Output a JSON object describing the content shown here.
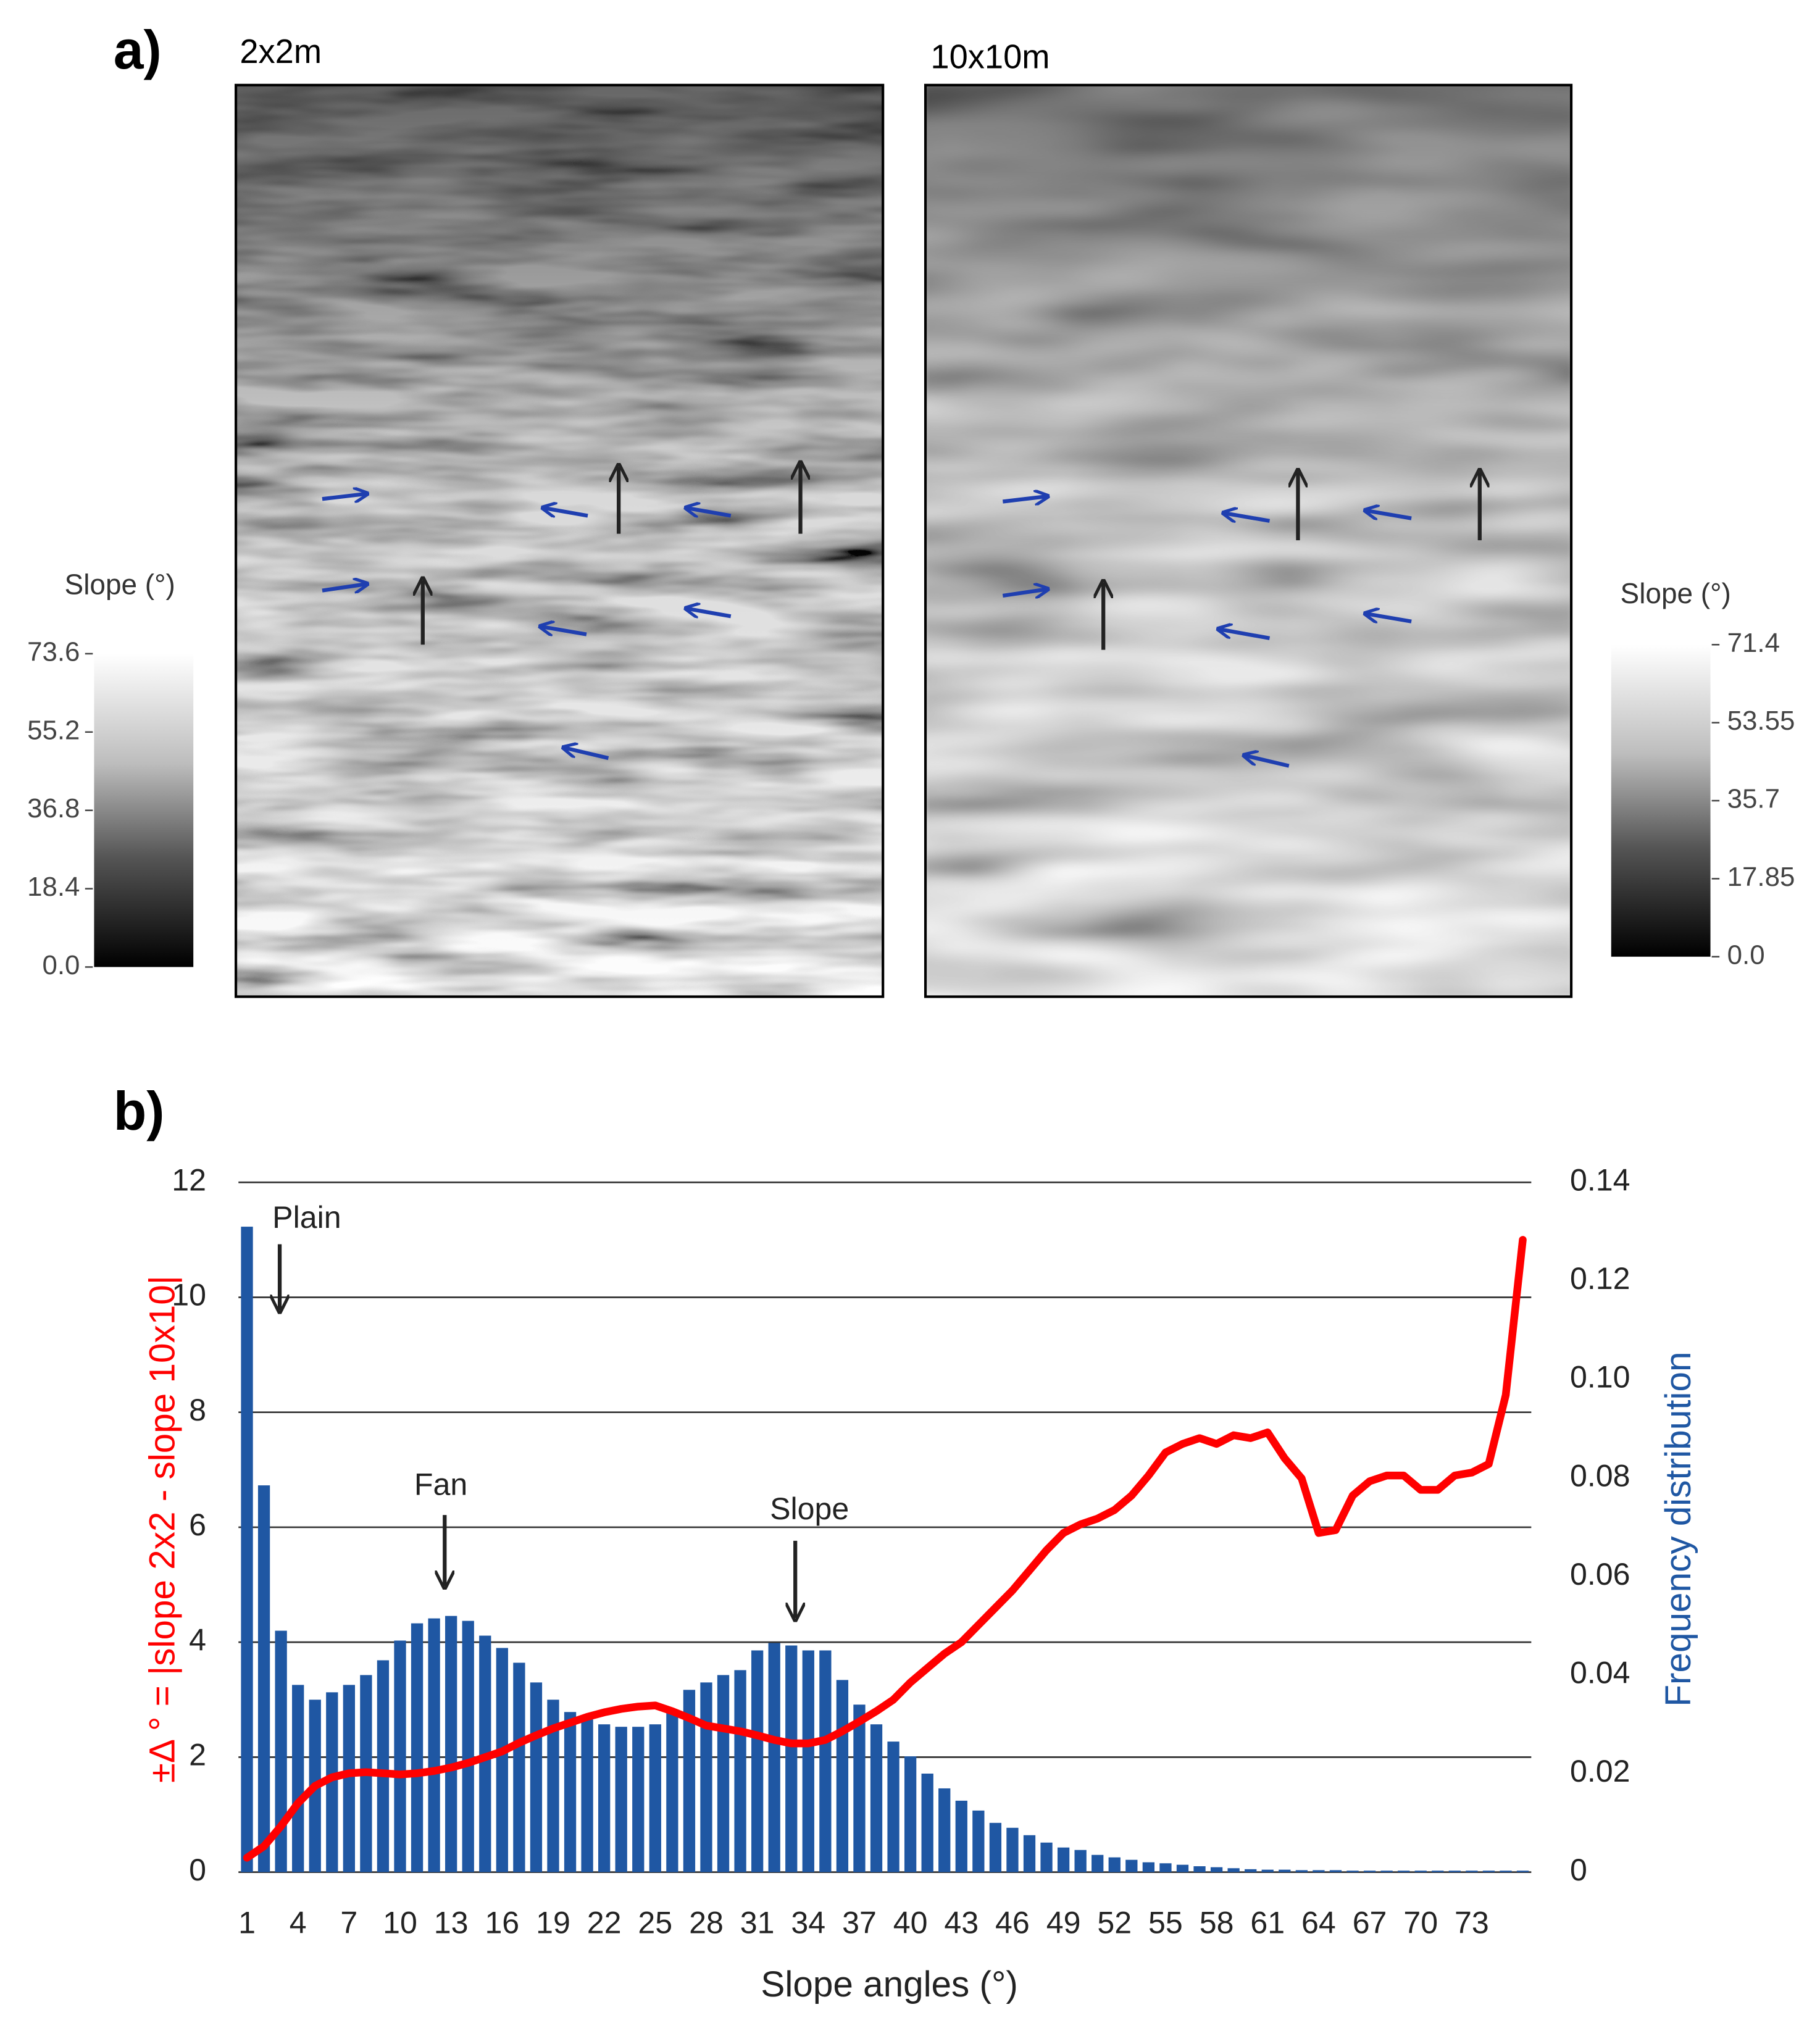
{
  "panel_a": {
    "label": "a)",
    "maps": [
      {
        "title": "2x2m"
      },
      {
        "title": "10x10m"
      }
    ],
    "colorbars": [
      {
        "title": "Slope (°)",
        "lim": [
          0,
          73.6
        ],
        "ticks": [
          {
            "value": 0,
            "label": "0.0"
          },
          18.4,
          36.8,
          55.2,
          73.6
        ]
      },
      {
        "title": "Slope (°)",
        "lim": [
          0,
          71.4
        ],
        "ticks": [
          {
            "value": 0,
            "label": "0.0"
          },
          17.85,
          35.7,
          53.55,
          71.4
        ]
      }
    ]
  },
  "panel_b": {
    "label": "b)"
  },
  "chart_data": {
    "type": "bar",
    "xlabel": "Slope angles (°)",
    "ylabel": "±Δ ° = |slope 2x2 - slope 10x10|",
    "y2label": "Frequency distribution",
    "annotations": [
      "Plain",
      "Fan",
      "Slope"
    ],
    "x": [
      1,
      2,
      3,
      4,
      5,
      6,
      7,
      8,
      9,
      10,
      11,
      12,
      13,
      14,
      15,
      16,
      17,
      18,
      19,
      20,
      21,
      22,
      23,
      24,
      25,
      26,
      27,
      28,
      29,
      30,
      31,
      32,
      33,
      34,
      35,
      36,
      37,
      38,
      39,
      40,
      41,
      42,
      43,
      44,
      45,
      46,
      47,
      48,
      49,
      50,
      51,
      52,
      53,
      54,
      55,
      56,
      57,
      58,
      59,
      60,
      61,
      62,
      63,
      64,
      65,
      66,
      67,
      68,
      69,
      70,
      71,
      72,
      73,
      74,
      75,
      76
    ],
    "xlim": [
      0.5,
      76.5
    ],
    "xticks": [
      1,
      4,
      7,
      10,
      13,
      16,
      19,
      22,
      25,
      28,
      31,
      34,
      37,
      40,
      43,
      46,
      49,
      52,
      55,
      58,
      61,
      64,
      67,
      70,
      73
    ],
    "ylim": [
      0,
      12
    ],
    "yticks": [
      0,
      2,
      4,
      6,
      8,
      10,
      12
    ],
    "y2lim": [
      0,
      0.14
    ],
    "y2ticks": [
      0,
      0.02,
      0.04,
      0.06,
      0.08,
      {
        "value": 0.1,
        "label": "0.10"
      },
      0.12,
      0.14
    ],
    "grid": true,
    "series": [
      {
        "type": "line",
        "color": "#ff0000",
        "values": [
          0.25,
          0.45,
          0.8,
          1.2,
          1.5,
          1.65,
          1.72,
          1.74,
          1.72,
          1.7,
          1.72,
          1.76,
          1.82,
          1.9,
          2.0,
          2.1,
          2.25,
          2.38,
          2.5,
          2.6,
          2.7,
          2.78,
          2.84,
          2.88,
          2.9,
          2.8,
          2.68,
          2.55,
          2.5,
          2.45,
          2.38,
          2.3,
          2.24,
          2.24,
          2.3,
          2.45,
          2.62,
          2.8,
          3.0,
          3.3,
          3.55,
          3.8,
          4.0,
          4.3,
          4.6,
          4.9,
          5.25,
          5.6,
          5.9,
          6.05,
          6.15,
          6.3,
          6.55,
          6.9,
          7.3,
          7.45,
          7.55,
          7.45,
          7.6,
          7.55,
          7.65,
          7.2,
          6.85,
          5.9,
          5.95,
          6.55,
          6.8,
          6.9,
          6.9,
          6.65,
          6.65,
          6.9,
          6.95,
          7.1,
          8.3,
          11.0
        ]
      },
      {
        "type": "bar",
        "axis": "y2",
        "color": "#1f57a3",
        "values": [
          0.131,
          0.0785,
          0.049,
          0.038,
          0.035,
          0.0365,
          0.038,
          0.04,
          0.043,
          0.047,
          0.0505,
          0.0515,
          0.052,
          0.051,
          0.048,
          0.0455,
          0.0425,
          0.0385,
          0.035,
          0.0325,
          0.031,
          0.03,
          0.0295,
          0.0295,
          0.03,
          0.033,
          0.037,
          0.0385,
          0.04,
          0.041,
          0.045,
          0.0465,
          0.046,
          0.045,
          0.045,
          0.039,
          0.034,
          0.03,
          0.0265,
          0.0235,
          0.02,
          0.017,
          0.0145,
          0.0125,
          0.01,
          0.009,
          0.0075,
          0.006,
          0.005,
          0.0045,
          0.0035,
          0.003,
          0.0025,
          0.002,
          0.0018,
          0.0015,
          0.0012,
          0.001,
          0.0008,
          0.0006,
          0.0005,
          0.0005,
          0.0004,
          0.0004,
          0.0004,
          0.0003,
          0.0003,
          0.0003,
          0.0003,
          0.0003,
          0.0003,
          0.0003,
          0.0003,
          0.0003,
          0.0003,
          0.0003
        ]
      }
    ]
  }
}
